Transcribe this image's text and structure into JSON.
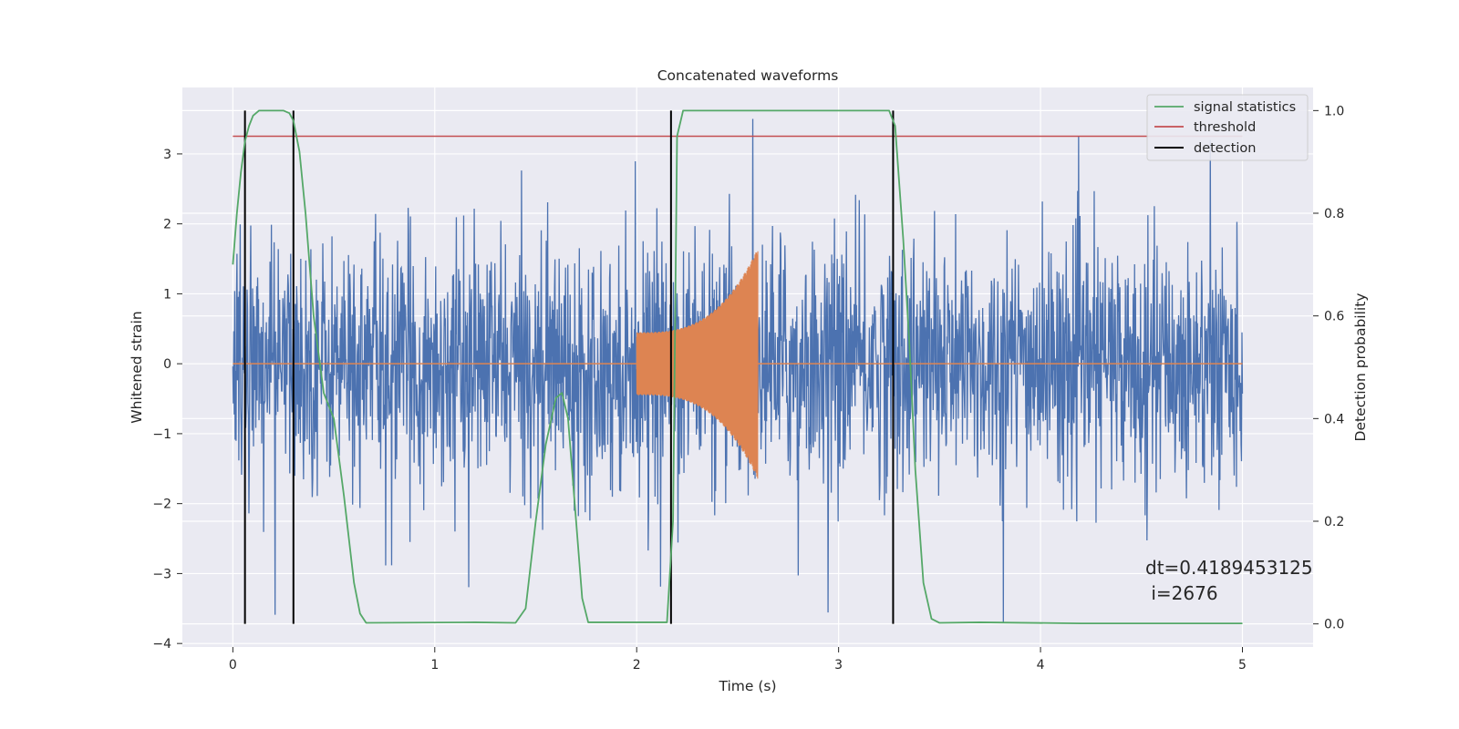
{
  "chart_data": {
    "type": "line",
    "title": "Concatenated waveforms",
    "xlabel": "Time (s)",
    "ylabel": "Whitened strain",
    "y2label": "Detection probability",
    "xlim": [
      -0.25,
      5.35
    ],
    "ylim": [
      -4.05,
      3.95
    ],
    "y2lim": [
      -0.045,
      1.045
    ],
    "xticks": [
      0,
      1,
      2,
      3,
      4,
      5
    ],
    "yticks": [
      -4,
      -3,
      -2,
      -1,
      0,
      1,
      2,
      3
    ],
    "y2ticks": [
      0.0,
      0.2,
      0.4,
      0.6,
      0.8,
      1.0
    ],
    "grid": true,
    "legend_position": "top-right",
    "legend": [
      "signal statistics",
      "threshold",
      "detection"
    ],
    "colors": {
      "strain": "#4c72b0",
      "injection": "#dd8452",
      "statistic": "#55a868",
      "threshold": "#c44e52",
      "detection": "#000000",
      "background": "#eaeaf2",
      "grid": "#ffffff"
    },
    "strain_series": {
      "x_range": [
        0,
        5
      ],
      "typical_amplitude": 1.0,
      "peak_amplitude": 3.5,
      "note_points": "dense noise trace"
    },
    "injection_series": {
      "x_range": [
        2.0,
        2.6
      ],
      "amplitude_start": 0.45,
      "amplitude_end": 1.65
    },
    "threshold_value": 0.95,
    "threshold_x_range": [
      0,
      5
    ],
    "detections_x": [
      0.06,
      0.3,
      2.17,
      3.27
    ],
    "detection_y_range": [
      0,
      1.0
    ],
    "statistic_points": [
      [
        0.0,
        0.7
      ],
      [
        0.02,
        0.8
      ],
      [
        0.04,
        0.88
      ],
      [
        0.06,
        0.94
      ],
      [
        0.08,
        0.97
      ],
      [
        0.1,
        0.99
      ],
      [
        0.13,
        1.0
      ],
      [
        0.25,
        1.0
      ],
      [
        0.28,
        0.995
      ],
      [
        0.3,
        0.98
      ],
      [
        0.33,
        0.92
      ],
      [
        0.36,
        0.8
      ],
      [
        0.4,
        0.6
      ],
      [
        0.45,
        0.45
      ],
      [
        0.5,
        0.4
      ],
      [
        0.55,
        0.25
      ],
      [
        0.6,
        0.08
      ],
      [
        0.63,
        0.02
      ],
      [
        0.66,
        0.002
      ],
      [
        1.2,
        0.003
      ],
      [
        1.4,
        0.002
      ],
      [
        1.45,
        0.03
      ],
      [
        1.5,
        0.2
      ],
      [
        1.55,
        0.35
      ],
      [
        1.6,
        0.44
      ],
      [
        1.63,
        0.45
      ],
      [
        1.66,
        0.4
      ],
      [
        1.7,
        0.2
      ],
      [
        1.73,
        0.05
      ],
      [
        1.76,
        0.003
      ],
      [
        2.15,
        0.003
      ],
      [
        2.18,
        0.2
      ],
      [
        2.2,
        0.95
      ],
      [
        2.23,
        1.0
      ],
      [
        3.25,
        1.0
      ],
      [
        3.28,
        0.97
      ],
      [
        3.32,
        0.75
      ],
      [
        3.35,
        0.55
      ],
      [
        3.38,
        0.3
      ],
      [
        3.42,
        0.08
      ],
      [
        3.46,
        0.01
      ],
      [
        3.5,
        0.002
      ],
      [
        3.7,
        0.003
      ],
      [
        4.2,
        0.001
      ],
      [
        5.0,
        0.001
      ]
    ],
    "annotation_lines": [
      "dt=0.4189453125",
      " i=2676"
    ]
  }
}
